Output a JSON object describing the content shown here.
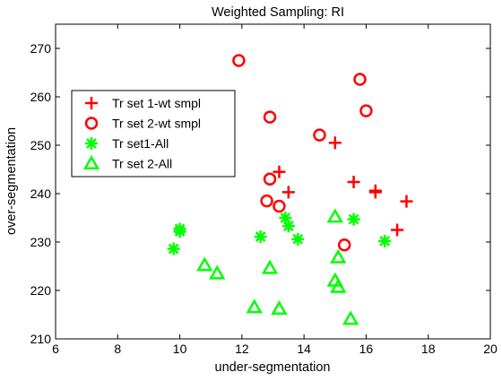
{
  "chart_data": {
    "type": "scatter",
    "title": "Weighted Sampling: RI",
    "xlabel": "under-segmentation",
    "ylabel": "over-segmentation",
    "xlim": [
      6,
      20
    ],
    "ylim": [
      210,
      275
    ],
    "xticks": [
      6,
      8,
      10,
      12,
      14,
      16,
      18,
      20
    ],
    "yticks": [
      210,
      220,
      230,
      240,
      250,
      260,
      270
    ],
    "grid": false,
    "legend_position": "upper-left",
    "series": [
      {
        "name": "Tr set 1-wt smpl",
        "marker": "plus",
        "color": "#ff0000",
        "points": [
          [
            13.2,
            244.5
          ],
          [
            13.5,
            240.3
          ],
          [
            15.0,
            250.5
          ],
          [
            15.6,
            242.4
          ],
          [
            16.3,
            240.6
          ],
          [
            16.3,
            240.3
          ],
          [
            17.0,
            232.5
          ],
          [
            17.3,
            238.4
          ]
        ]
      },
      {
        "name": "Tr set 2-wt smpl",
        "marker": "circle",
        "color": "#ff0000",
        "points": [
          [
            11.9,
            267.5
          ],
          [
            12.9,
            255.8
          ],
          [
            12.9,
            243.0
          ],
          [
            12.8,
            238.5
          ],
          [
            13.2,
            237.4
          ],
          [
            14.5,
            252.1
          ],
          [
            15.8,
            263.6
          ],
          [
            16.0,
            257.1
          ],
          [
            15.3,
            229.4
          ]
        ]
      },
      {
        "name": "Tr set1-All",
        "marker": "asterisk",
        "color": "#00ff00",
        "points": [
          [
            9.8,
            228.6
          ],
          [
            10.0,
            232.2
          ],
          [
            10.0,
            232.7
          ],
          [
            12.6,
            231.1
          ],
          [
            13.4,
            235.0
          ],
          [
            13.5,
            233.3
          ],
          [
            13.8,
            230.6
          ],
          [
            15.6,
            234.7
          ],
          [
            16.6,
            230.2
          ]
        ]
      },
      {
        "name": "Tr set 2-All",
        "marker": "triangle",
        "color": "#00ff00",
        "points": [
          [
            10.8,
            225.2
          ],
          [
            11.2,
            223.5
          ],
          [
            12.4,
            216.5
          ],
          [
            12.9,
            224.6
          ],
          [
            13.2,
            216.2
          ],
          [
            15.0,
            235.2
          ],
          [
            15.1,
            226.8
          ],
          [
            15.0,
            222.0
          ],
          [
            15.1,
            220.7
          ],
          [
            15.5,
            214.1
          ]
        ]
      }
    ]
  }
}
